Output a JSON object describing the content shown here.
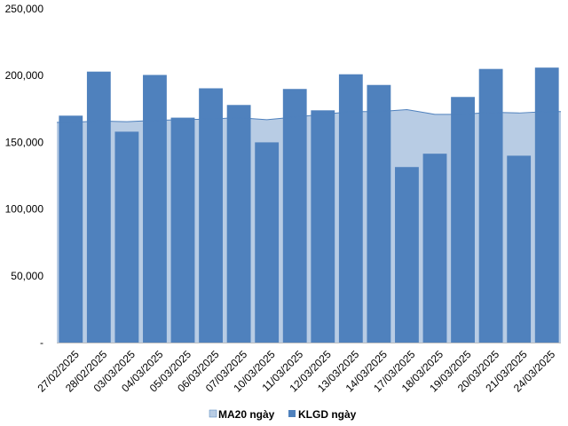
{
  "chart_data": {
    "type": "bar",
    "categories": [
      "27/02/2025",
      "28/02/2025",
      "03/03/2025",
      "04/03/2025",
      "05/03/2025",
      "06/03/2025",
      "07/03/2025",
      "10/03/2025",
      "11/03/2025",
      "12/03/2025",
      "13/03/2025",
      "14/03/2025",
      "17/03/2025",
      "18/03/2025",
      "19/03/2025",
      "20/03/2025",
      "21/03/2025",
      "24/03/2025"
    ],
    "series": [
      {
        "name": "MA20 ngày",
        "type": "area",
        "color": "#b8cce4",
        "line_color": "#4f81bd",
        "values": [
          165000,
          166000,
          165500,
          166500,
          167000,
          167500,
          168500,
          167000,
          169000,
          171000,
          173000,
          173000,
          174500,
          171000,
          171000,
          172500,
          172000,
          173000
        ]
      },
      {
        "name": "KLGD ngày",
        "type": "bar",
        "color": "#4f81bd",
        "values": [
          170000,
          203000,
          158000,
          200500,
          168500,
          190500,
          178000,
          150000,
          190000,
          174000,
          201000,
          193000,
          131500,
          141500,
          184000,
          205000,
          140000,
          206000
        ]
      }
    ],
    "y_ticks": [
      "-",
      "50,000",
      "100,000",
      "150,000",
      "200,000",
      "250,000"
    ],
    "ylim": [
      0,
      250000
    ],
    "grid": false,
    "legend_position": "bottom"
  }
}
